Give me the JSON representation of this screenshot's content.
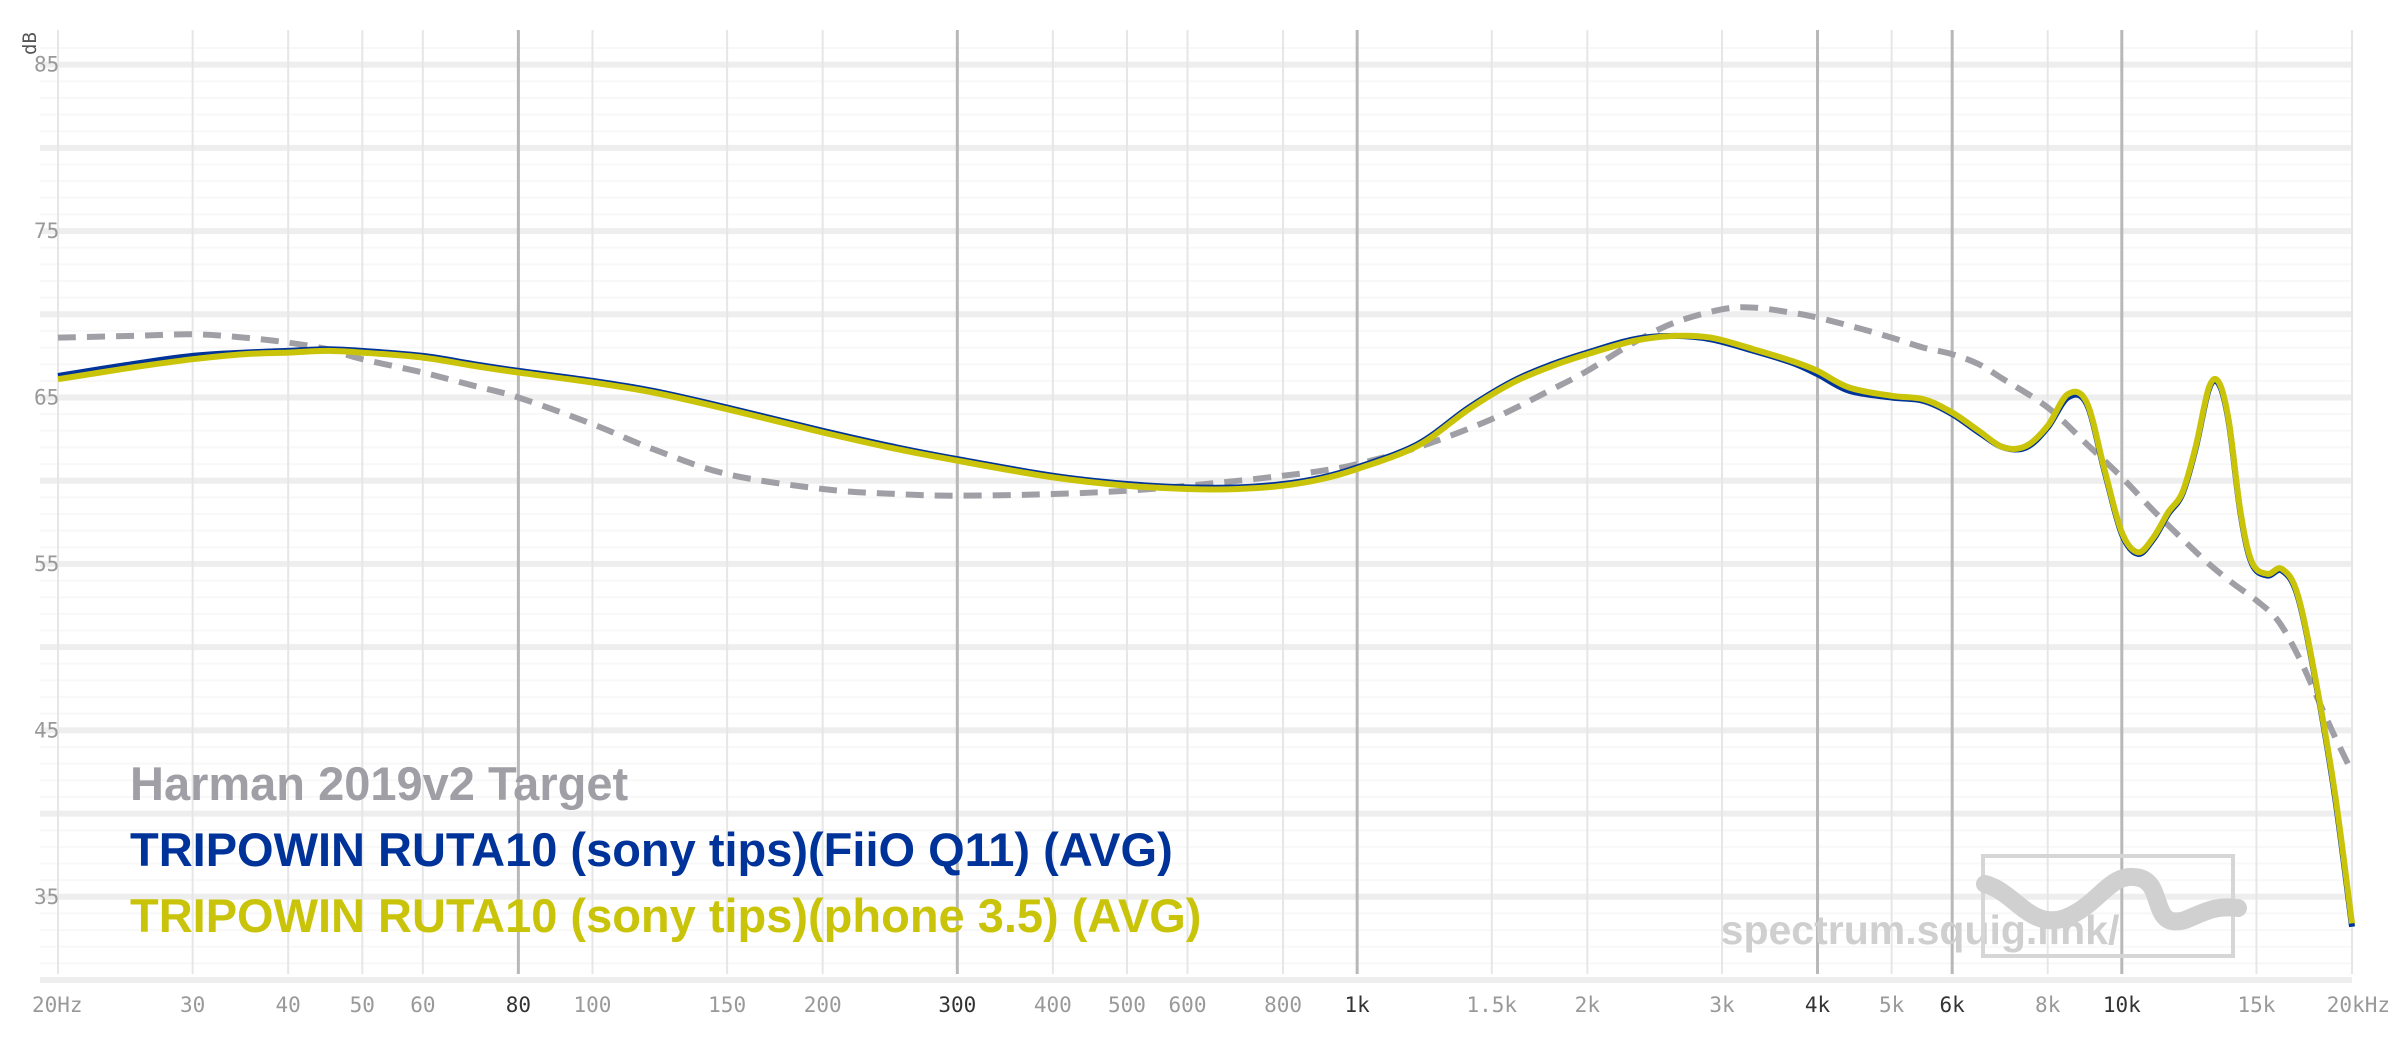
{
  "chart_data": {
    "type": "line",
    "title": "",
    "xlabel": "",
    "ylabel": "dB",
    "x_scale": "log",
    "xlim": [
      20,
      20000
    ],
    "ylim": [
      30,
      86
    ],
    "grid": true,
    "legend_placement": "bottom-left",
    "y_ticks": [
      {
        "value": 35,
        "label": "35"
      },
      {
        "value": 45,
        "label": "45"
      },
      {
        "value": 55,
        "label": "55"
      },
      {
        "value": 65,
        "label": "65"
      },
      {
        "value": 75,
        "label": "75"
      },
      {
        "value": 85,
        "label": "85"
      }
    ],
    "x_ticks": [
      {
        "value": 20,
        "label": "20Hz",
        "major": false
      },
      {
        "value": 30,
        "label": "30",
        "major": false
      },
      {
        "value": 40,
        "label": "40",
        "major": false
      },
      {
        "value": 50,
        "label": "50",
        "major": false
      },
      {
        "value": 60,
        "label": "60",
        "major": false
      },
      {
        "value": 80,
        "label": "80",
        "major": true
      },
      {
        "value": 100,
        "label": "100",
        "major": false
      },
      {
        "value": 150,
        "label": "150",
        "major": false
      },
      {
        "value": 200,
        "label": "200",
        "major": false
      },
      {
        "value": 300,
        "label": "300",
        "major": true
      },
      {
        "value": 400,
        "label": "400",
        "major": false
      },
      {
        "value": 500,
        "label": "500",
        "major": false
      },
      {
        "value": 600,
        "label": "600",
        "major": false
      },
      {
        "value": 800,
        "label": "800",
        "major": false
      },
      {
        "value": 1000,
        "label": "1k",
        "major": true
      },
      {
        "value": 1500,
        "label": "1.5k",
        "major": false
      },
      {
        "value": 2000,
        "label": "2k",
        "major": false
      },
      {
        "value": 3000,
        "label": "3k",
        "major": false
      },
      {
        "value": 4000,
        "label": "4k",
        "major": true
      },
      {
        "value": 5000,
        "label": "5k",
        "major": false
      },
      {
        "value": 6000,
        "label": "6k",
        "major": true
      },
      {
        "value": 8000,
        "label": "8k",
        "major": false
      },
      {
        "value": 10000,
        "label": "10k",
        "major": true
      },
      {
        "value": 15000,
        "label": "15k",
        "major": false
      },
      {
        "value": 20000,
        "label": "20kHz",
        "major": false
      }
    ],
    "series": [
      {
        "name": "Harman 2019v2 Target",
        "color": "#a09fa6",
        "dash": true,
        "points": [
          [
            20,
            68.6
          ],
          [
            25,
            68.7
          ],
          [
            30,
            68.8
          ],
          [
            35,
            68.6
          ],
          [
            40,
            68.3
          ],
          [
            45,
            67.9
          ],
          [
            50,
            67.3
          ],
          [
            60,
            66.5
          ],
          [
            70,
            65.7
          ],
          [
            80,
            65.0
          ],
          [
            100,
            63.4
          ],
          [
            120,
            61.9
          ],
          [
            150,
            60.4
          ],
          [
            200,
            59.5
          ],
          [
            250,
            59.2
          ],
          [
            300,
            59.1
          ],
          [
            400,
            59.2
          ],
          [
            500,
            59.4
          ],
          [
            600,
            59.7
          ],
          [
            700,
            60.0
          ],
          [
            800,
            60.3
          ],
          [
            900,
            60.6
          ],
          [
            1000,
            61.0
          ],
          [
            1200,
            62.0
          ],
          [
            1500,
            63.7
          ],
          [
            1800,
            65.5
          ],
          [
            2000,
            66.6
          ],
          [
            2300,
            68.3
          ],
          [
            2600,
            69.5
          ],
          [
            3000,
            70.3
          ],
          [
            3300,
            70.4
          ],
          [
            3700,
            70.1
          ],
          [
            4000,
            69.8
          ],
          [
            4500,
            69.2
          ],
          [
            5000,
            68.6
          ],
          [
            5500,
            68.0
          ],
          [
            6000,
            67.6
          ],
          [
            6500,
            67.0
          ],
          [
            7000,
            66.1
          ],
          [
            8000,
            64.4
          ],
          [
            9000,
            62.2
          ],
          [
            10000,
            60.2
          ],
          [
            11000,
            58.2
          ],
          [
            12000,
            56.5
          ],
          [
            13000,
            55.0
          ],
          [
            14000,
            53.8
          ],
          [
            15000,
            52.8
          ],
          [
            16000,
            51.6
          ],
          [
            17000,
            49.5
          ],
          [
            18000,
            47.0
          ],
          [
            19000,
            44.6
          ],
          [
            20000,
            42.5
          ]
        ]
      },
      {
        "name": "TRIPOWIN RUTA10 (sony tips)(FiiO Q11) (AVG)",
        "color": "#003399",
        "dash": false,
        "points": [
          [
            20,
            66.3
          ],
          [
            25,
            67.0
          ],
          [
            30,
            67.5
          ],
          [
            35,
            67.7
          ],
          [
            40,
            67.8
          ],
          [
            45,
            67.9
          ],
          [
            50,
            67.8
          ],
          [
            60,
            67.5
          ],
          [
            70,
            67.0
          ],
          [
            80,
            66.6
          ],
          [
            100,
            66.0
          ],
          [
            120,
            65.4
          ],
          [
            150,
            64.4
          ],
          [
            200,
            63.0
          ],
          [
            250,
            62.0
          ],
          [
            300,
            61.3
          ],
          [
            400,
            60.3
          ],
          [
            500,
            59.8
          ],
          [
            600,
            59.6
          ],
          [
            700,
            59.6
          ],
          [
            800,
            59.8
          ],
          [
            900,
            60.2
          ],
          [
            1000,
            60.8
          ],
          [
            1200,
            62.2
          ],
          [
            1400,
            64.4
          ],
          [
            1600,
            66.0
          ],
          [
            1800,
            67.0
          ],
          [
            2000,
            67.7
          ],
          [
            2300,
            68.5
          ],
          [
            2600,
            68.7
          ],
          [
            2900,
            68.5
          ],
          [
            3300,
            67.8
          ],
          [
            3700,
            67.1
          ],
          [
            4000,
            66.4
          ],
          [
            4400,
            65.4
          ],
          [
            5000,
            65.0
          ],
          [
            5500,
            64.8
          ],
          [
            6000,
            64.0
          ],
          [
            6500,
            62.9
          ],
          [
            7000,
            62.0
          ],
          [
            7500,
            62.0
          ],
          [
            8000,
            63.2
          ],
          [
            8500,
            65.0
          ],
          [
            9000,
            64.6
          ],
          [
            9500,
            60.5
          ],
          [
            10000,
            56.8
          ],
          [
            10500,
            55.6
          ],
          [
            11000,
            56.5
          ],
          [
            11500,
            58.0
          ],
          [
            12000,
            59.2
          ],
          [
            12500,
            62.0
          ],
          [
            13000,
            65.5
          ],
          [
            13400,
            65.8
          ],
          [
            13800,
            63.5
          ],
          [
            14300,
            58.0
          ],
          [
            14800,
            55.0
          ],
          [
            15500,
            54.3
          ],
          [
            16200,
            54.6
          ],
          [
            17000,
            53.0
          ],
          [
            18000,
            47.5
          ],
          [
            19000,
            41.0
          ],
          [
            20000,
            33.2
          ]
        ]
      },
      {
        "name": "TRIPOWIN RUTA10 (sony tips)(phone 3.5) (AVG)",
        "color": "#c9c40a",
        "dash": false,
        "points": [
          [
            20,
            66.1
          ],
          [
            25,
            66.8
          ],
          [
            30,
            67.3
          ],
          [
            35,
            67.6
          ],
          [
            40,
            67.7
          ],
          [
            45,
            67.8
          ],
          [
            50,
            67.7
          ],
          [
            60,
            67.4
          ],
          [
            70,
            66.9
          ],
          [
            80,
            66.5
          ],
          [
            100,
            65.9
          ],
          [
            120,
            65.3
          ],
          [
            150,
            64.3
          ],
          [
            200,
            62.9
          ],
          [
            250,
            61.9
          ],
          [
            300,
            61.2
          ],
          [
            400,
            60.2
          ],
          [
            500,
            59.7
          ],
          [
            600,
            59.5
          ],
          [
            700,
            59.5
          ],
          [
            800,
            59.7
          ],
          [
            900,
            60.1
          ],
          [
            1000,
            60.7
          ],
          [
            1200,
            62.1
          ],
          [
            1400,
            64.3
          ],
          [
            1600,
            65.9
          ],
          [
            1800,
            66.9
          ],
          [
            2000,
            67.6
          ],
          [
            2300,
            68.4
          ],
          [
            2600,
            68.7
          ],
          [
            2900,
            68.6
          ],
          [
            3300,
            67.9
          ],
          [
            3700,
            67.2
          ],
          [
            4000,
            66.6
          ],
          [
            4400,
            65.6
          ],
          [
            5000,
            65.1
          ],
          [
            5500,
            64.9
          ],
          [
            6000,
            64.1
          ],
          [
            6500,
            63.0
          ],
          [
            7000,
            62.0
          ],
          [
            7500,
            62.1
          ],
          [
            8000,
            63.3
          ],
          [
            8500,
            65.2
          ],
          [
            9000,
            64.7
          ],
          [
            9500,
            60.6
          ],
          [
            10000,
            56.9
          ],
          [
            10500,
            55.7
          ],
          [
            11000,
            56.6
          ],
          [
            11500,
            58.1
          ],
          [
            12000,
            59.3
          ],
          [
            12500,
            62.1
          ],
          [
            13000,
            65.6
          ],
          [
            13400,
            65.9
          ],
          [
            13800,
            63.6
          ],
          [
            14300,
            58.1
          ],
          [
            14800,
            55.1
          ],
          [
            15500,
            54.4
          ],
          [
            16200,
            54.7
          ],
          [
            17000,
            53.1
          ],
          [
            18000,
            47.6
          ],
          [
            19000,
            41.2
          ],
          [
            20000,
            33.4
          ]
        ]
      }
    ]
  },
  "watermark": {
    "text": "spectrum.squig.link/"
  }
}
